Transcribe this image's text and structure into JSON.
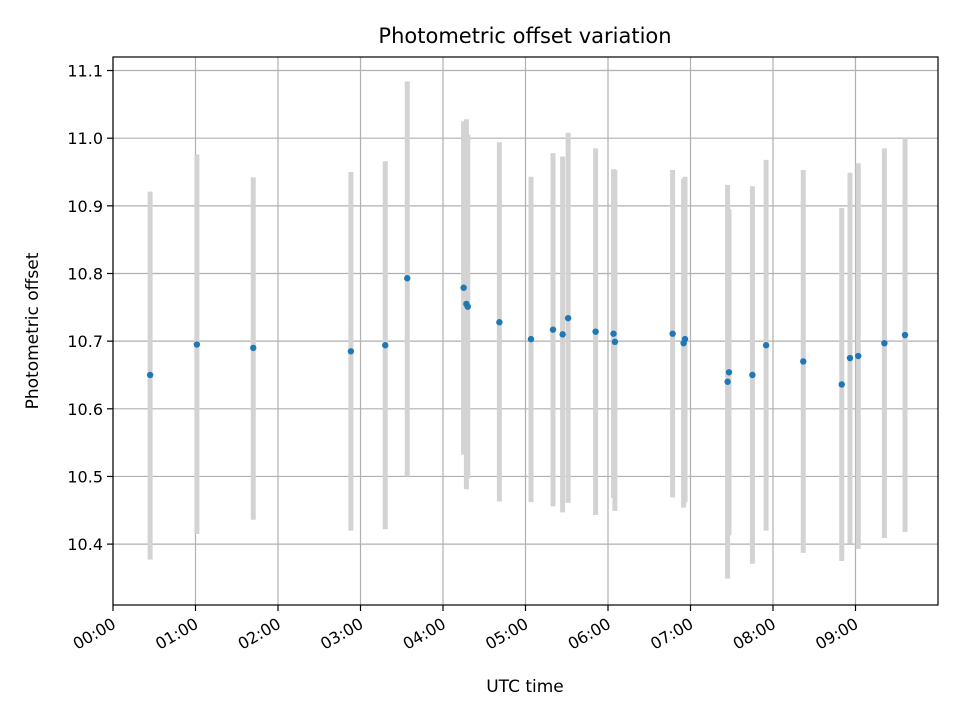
{
  "chart_data": {
    "type": "scatter",
    "title": "Photometric offset variation",
    "xlabel": "UTC time",
    "ylabel": "Photometric offset",
    "xlim": [
      "00:00",
      "10:00"
    ],
    "ylim": [
      10.31,
      11.12
    ],
    "x_ticks": [
      "00:00",
      "01:00",
      "02:00",
      "03:00",
      "04:00",
      "05:00",
      "06:00",
      "07:00",
      "08:00",
      "09:00"
    ],
    "y_ticks": [
      "10.4",
      "10.5",
      "10.6",
      "10.7",
      "10.8",
      "10.9",
      "11.0",
      "11.1"
    ],
    "grid": true,
    "marker_color": "#1f77b4",
    "errorbar_color": "#d3d3d3",
    "points": [
      {
        "time": "00:27",
        "y": 10.65,
        "err_low": 10.377,
        "err_high": 10.921
      },
      {
        "time": "01:01",
        "y": 10.695,
        "err_low": 10.415,
        "err_high": 10.976
      },
      {
        "time": "01:42",
        "y": 10.69,
        "err_low": 10.436,
        "err_high": 10.942
      },
      {
        "time": "02:53",
        "y": 10.685,
        "err_low": 10.42,
        "err_high": 10.95
      },
      {
        "time": "03:18",
        "y": 10.694,
        "err_low": 10.422,
        "err_high": 10.966
      },
      {
        "time": "03:34",
        "y": 10.793,
        "err_low": 10.5,
        "err_high": 11.084
      },
      {
        "time": "04:15",
        "y": 10.779,
        "err_low": 10.532,
        "err_high": 11.025
      },
      {
        "time": "04:17",
        "y": 10.755,
        "err_low": 10.481,
        "err_high": 11.028
      },
      {
        "time": "04:18",
        "y": 10.751,
        "err_low": 10.497,
        "err_high": 11.005
      },
      {
        "time": "04:41",
        "y": 10.728,
        "err_low": 10.463,
        "err_high": 10.994
      },
      {
        "time": "05:04",
        "y": 10.703,
        "err_low": 10.462,
        "err_high": 10.943
      },
      {
        "time": "05:20",
        "y": 10.717,
        "err_low": 10.456,
        "err_high": 10.978
      },
      {
        "time": "05:27",
        "y": 10.71,
        "err_low": 10.447,
        "err_high": 10.973
      },
      {
        "time": "05:31",
        "y": 10.734,
        "err_low": 10.461,
        "err_high": 11.008
      },
      {
        "time": "05:51",
        "y": 10.714,
        "err_low": 10.443,
        "err_high": 10.985
      },
      {
        "time": "06:04",
        "y": 10.711,
        "err_low": 10.468,
        "err_high": 10.954
      },
      {
        "time": "06:05",
        "y": 10.699,
        "err_low": 10.449,
        "err_high": 10.953
      },
      {
        "time": "06:47",
        "y": 10.711,
        "err_low": 10.469,
        "err_high": 10.953
      },
      {
        "time": "06:55",
        "y": 10.697,
        "err_low": 10.454,
        "err_high": 10.94
      },
      {
        "time": "06:56",
        "y": 10.703,
        "err_low": 10.462,
        "err_high": 10.943
      },
      {
        "time": "07:27",
        "y": 10.64,
        "err_low": 10.349,
        "err_high": 10.931
      },
      {
        "time": "07:28",
        "y": 10.654,
        "err_low": 10.413,
        "err_high": 10.895
      },
      {
        "time": "07:45",
        "y": 10.65,
        "err_low": 10.371,
        "err_high": 10.929
      },
      {
        "time": "07:55",
        "y": 10.694,
        "err_low": 10.42,
        "err_high": 10.968
      },
      {
        "time": "08:22",
        "y": 10.67,
        "err_low": 10.387,
        "err_high": 10.953
      },
      {
        "time": "08:50",
        "y": 10.636,
        "err_low": 10.375,
        "err_high": 10.897
      },
      {
        "time": "08:56",
        "y": 10.675,
        "err_low": 10.401,
        "err_high": 10.949
      },
      {
        "time": "09:02",
        "y": 10.678,
        "err_low": 10.393,
        "err_high": 10.963
      },
      {
        "time": "09:21",
        "y": 10.697,
        "err_low": 10.409,
        "err_high": 10.985
      },
      {
        "time": "09:36",
        "y": 10.709,
        "err_low": 10.418,
        "err_high": 11.0
      }
    ]
  }
}
